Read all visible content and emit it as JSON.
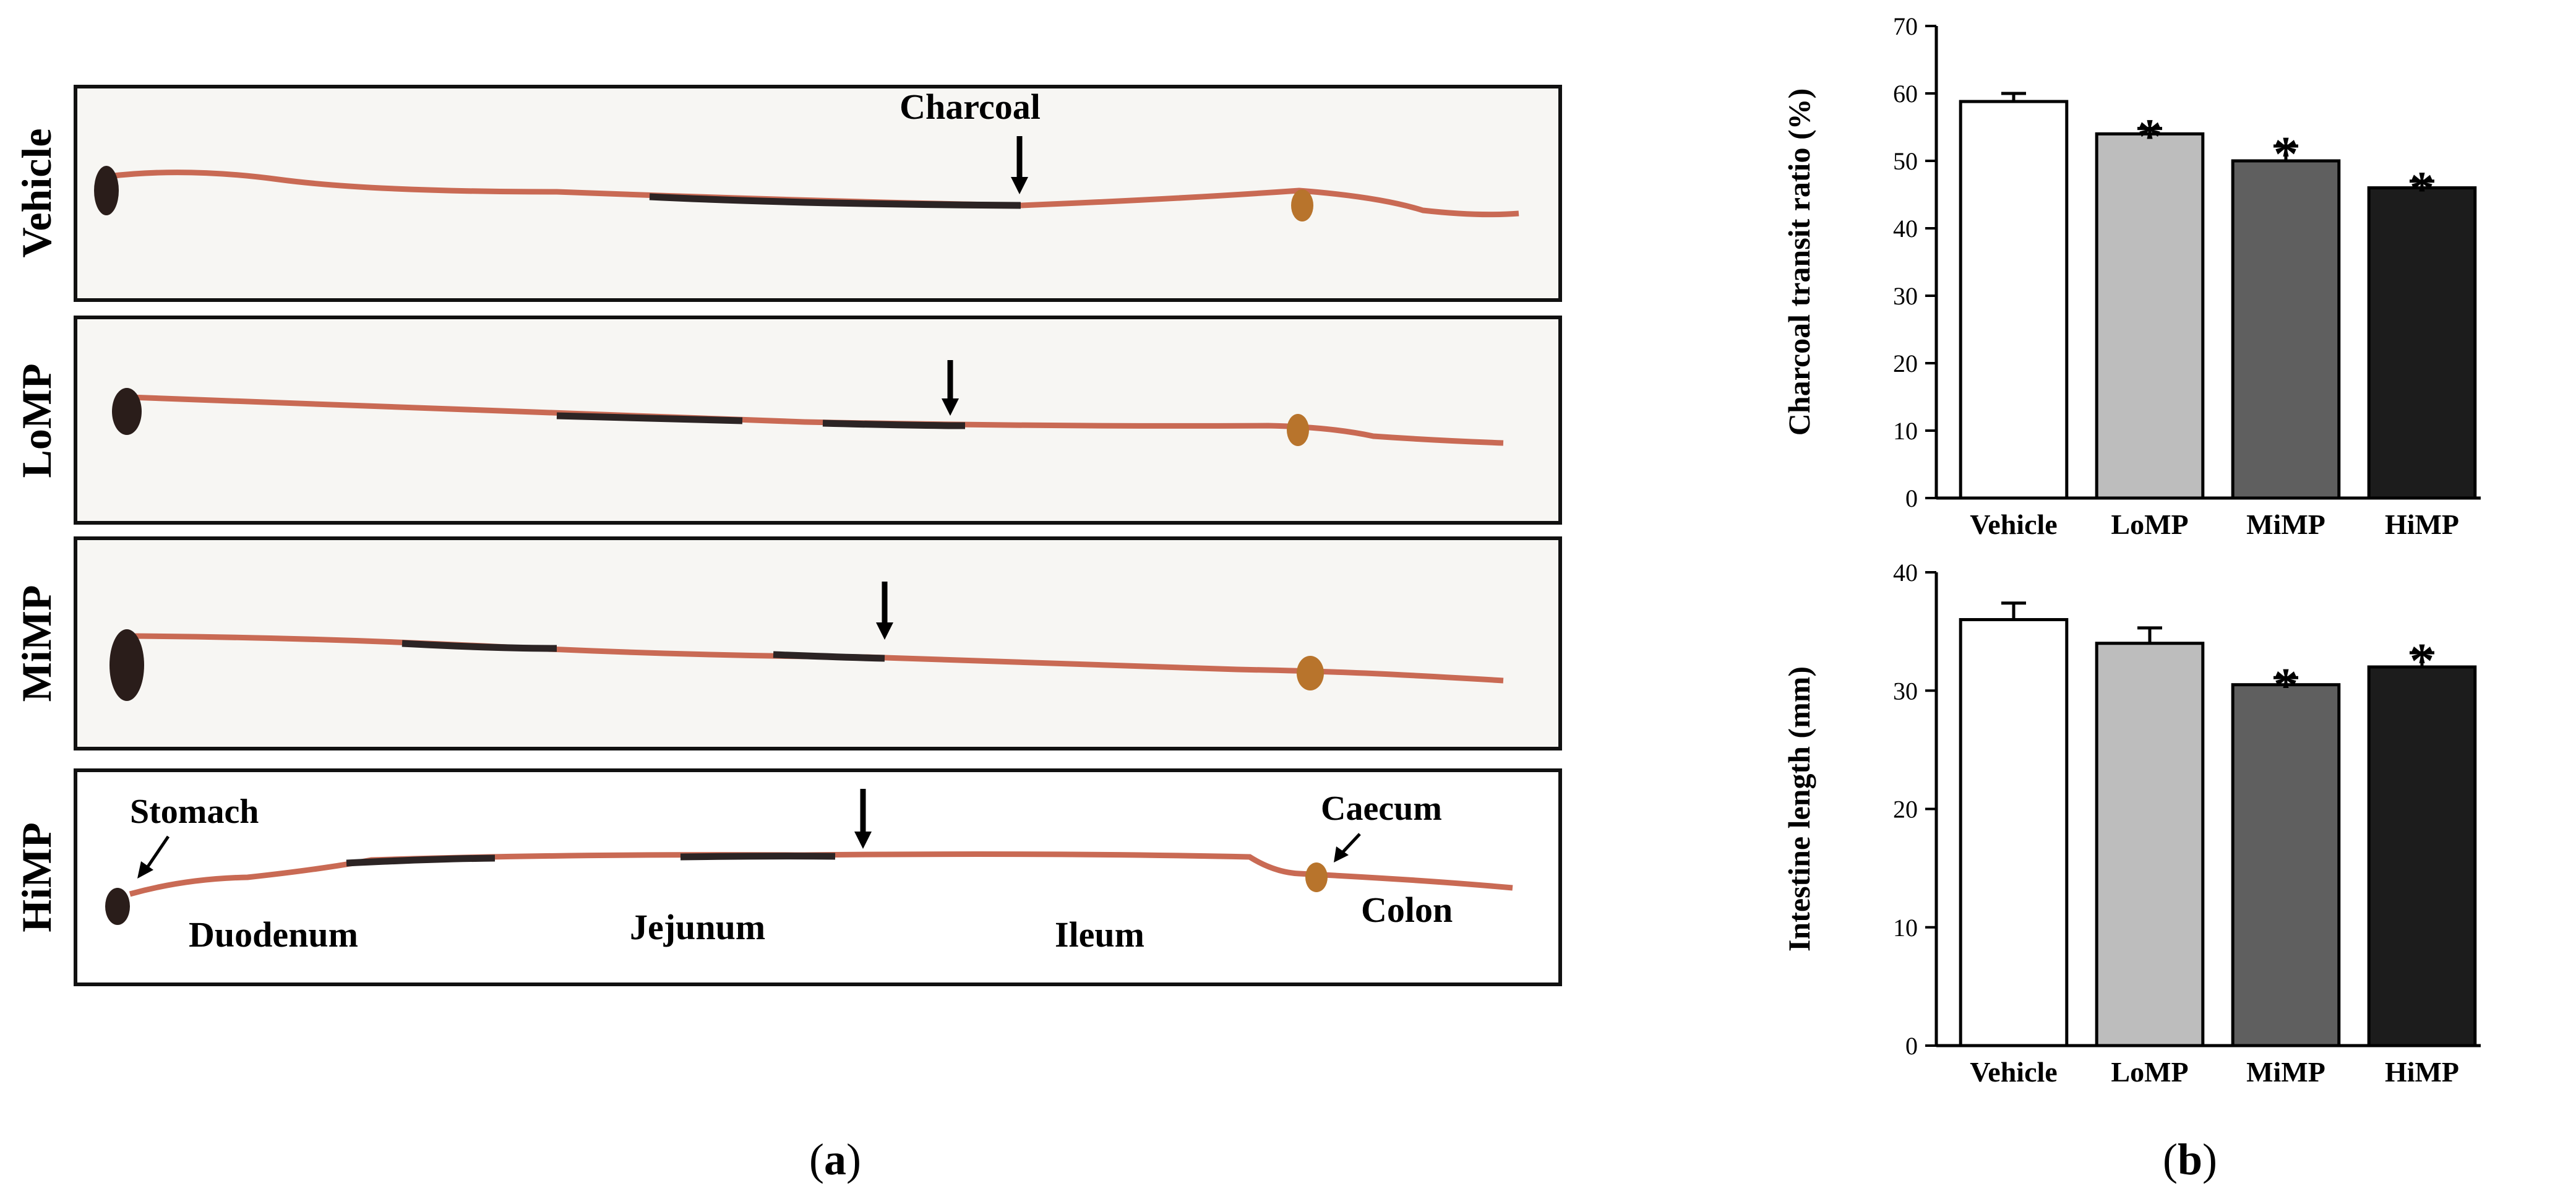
{
  "panel_a": {
    "rows": [
      {
        "label": "Vehicle"
      },
      {
        "label": "LoMP"
      },
      {
        "label": "MiMP"
      },
      {
        "label": "HiMP"
      }
    ],
    "annotations": {
      "charcoal": "Charcoal",
      "stomach": "Stomach",
      "caecum": "Caecum",
      "duodenum": "Duodenum",
      "jejunum": "Jejunum",
      "ileum": "Ileum",
      "colon": "Colon"
    },
    "caption_open": "(",
    "caption_letter": "a",
    "caption_close": ")"
  },
  "panel_b": {
    "caption_open": "(",
    "caption_letter": "b",
    "caption_close": ")"
  },
  "chart_data": [
    {
      "type": "bar",
      "title": "",
      "xlabel": "",
      "ylabel": "Charcoal transit ratio (%)",
      "categories": [
        "Vehicle",
        "LoMP",
        "MiMP",
        "HiMP"
      ],
      "values": [
        58.8,
        54.0,
        50.0,
        46.0
      ],
      "errors": [
        1.2,
        0.8,
        2.2,
        1.0
      ],
      "significance": [
        "",
        "*",
        "*",
        "*"
      ],
      "bar_colors": [
        "#ffffff",
        "#bdbdbd",
        "#5f5f5f",
        "#1c1c1c"
      ],
      "ylim": [
        0,
        70
      ],
      "yticks": [
        0,
        10,
        20,
        30,
        40,
        50,
        60,
        70
      ],
      "grid": false
    },
    {
      "type": "bar",
      "title": "",
      "xlabel": "",
      "ylabel": "Intestine length (mm)",
      "categories": [
        "Vehicle",
        "LoMP",
        "MiMP",
        "HiMP"
      ],
      "values": [
        36.0,
        34.0,
        30.5,
        32.0
      ],
      "errors": [
        1.4,
        1.3,
        0.6,
        1.2
      ],
      "significance": [
        "",
        "",
        "*",
        "*"
      ],
      "bar_colors": [
        "#ffffff",
        "#bdbdbd",
        "#5f5f5f",
        "#1c1c1c"
      ],
      "ylim": [
        0,
        40
      ],
      "yticks": [
        0,
        10,
        20,
        30,
        40
      ],
      "grid": false
    }
  ]
}
